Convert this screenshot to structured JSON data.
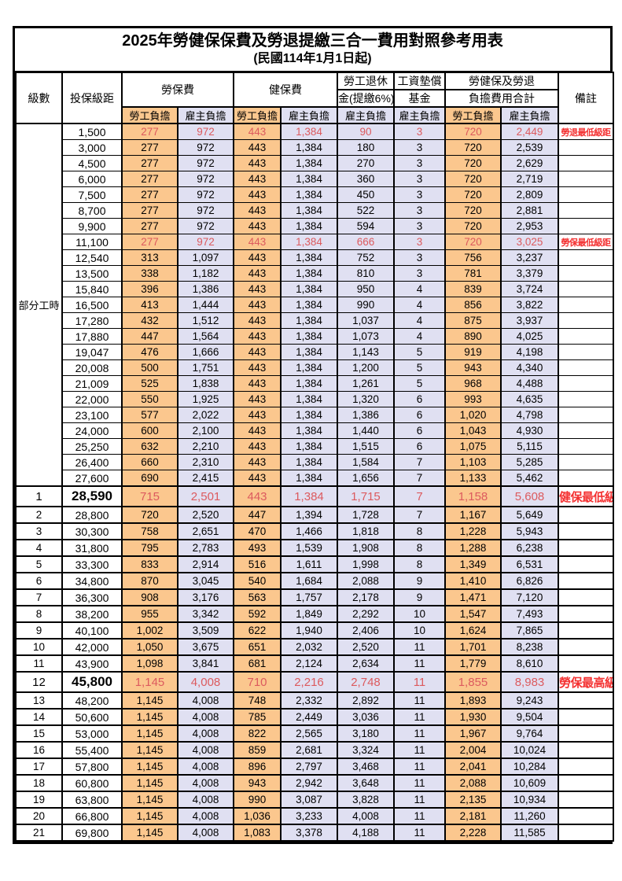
{
  "title": "2025年勞健保保費及勞退提繳三合一費用對照參考用表",
  "subtitle": "(民國114年1月1日起)",
  "headers": {
    "level": "級數",
    "salary": "投保級距",
    "labor": "勞保費",
    "health": "健保費",
    "pension_l1": "勞工退休",
    "pension_l2": "金(提繳6%)",
    "fund_l1": "工資墊償",
    "fund_l2": "基金",
    "total_l1": "勞健保及勞退",
    "total_l2": "負擔費用合計",
    "note": "備註",
    "employee_share": "勞工負擔",
    "employer_share": "雇主負擔"
  },
  "part_time_label": "部分工時",
  "colors": {
    "employee_bg": "#FBC78E",
    "employer_bg": "#E0E0F2",
    "highlight_value_text": "#DC5A5E",
    "note_text": "#F43131",
    "border": "#000000"
  },
  "value_column_keys": [
    "labor_employee",
    "labor_employer",
    "health_employee",
    "health_employer",
    "pension_employer",
    "fund_employer",
    "total_employee",
    "total_employer"
  ],
  "rows": [
    {
      "level": "",
      "salary": "1,500",
      "v": [
        "277",
        "972",
        "443",
        "1,384",
        "90",
        "3",
        "720",
        "2,449"
      ],
      "note": "勞退最低級距",
      "red": true
    },
    {
      "level": "",
      "salary": "3,000",
      "v": [
        "277",
        "972",
        "443",
        "1,384",
        "180",
        "3",
        "720",
        "2,539"
      ],
      "note": ""
    },
    {
      "level": "",
      "salary": "4,500",
      "v": [
        "277",
        "972",
        "443",
        "1,384",
        "270",
        "3",
        "720",
        "2,629"
      ],
      "note": ""
    },
    {
      "level": "",
      "salary": "6,000",
      "v": [
        "277",
        "972",
        "443",
        "1,384",
        "360",
        "3",
        "720",
        "2,719"
      ],
      "note": ""
    },
    {
      "level": "",
      "salary": "7,500",
      "v": [
        "277",
        "972",
        "443",
        "1,384",
        "450",
        "3",
        "720",
        "2,809"
      ],
      "note": ""
    },
    {
      "level": "",
      "salary": "8,700",
      "v": [
        "277",
        "972",
        "443",
        "1,384",
        "522",
        "3",
        "720",
        "2,881"
      ],
      "note": ""
    },
    {
      "level": "",
      "salary": "9,900",
      "v": [
        "277",
        "972",
        "443",
        "1,384",
        "594",
        "3",
        "720",
        "2,953"
      ],
      "note": ""
    },
    {
      "level": "",
      "salary": "11,100",
      "v": [
        "277",
        "972",
        "443",
        "1,384",
        "666",
        "3",
        "720",
        "3,025"
      ],
      "note": "勞保最低級距",
      "red": true
    },
    {
      "level": "",
      "salary": "12,540",
      "v": [
        "313",
        "1,097",
        "443",
        "1,384",
        "752",
        "3",
        "756",
        "3,237"
      ],
      "note": ""
    },
    {
      "level": "",
      "salary": "13,500",
      "v": [
        "338",
        "1,182",
        "443",
        "1,384",
        "810",
        "3",
        "781",
        "3,379"
      ],
      "note": ""
    },
    {
      "level": "",
      "salary": "15,840",
      "v": [
        "396",
        "1,386",
        "443",
        "1,384",
        "950",
        "4",
        "839",
        "3,724"
      ],
      "note": ""
    },
    {
      "level": "",
      "salary": "16,500",
      "v": [
        "413",
        "1,444",
        "443",
        "1,384",
        "990",
        "4",
        "856",
        "3,822"
      ],
      "note": ""
    },
    {
      "level": "",
      "salary": "17,280",
      "v": [
        "432",
        "1,512",
        "443",
        "1,384",
        "1,037",
        "4",
        "875",
        "3,937"
      ],
      "note": ""
    },
    {
      "level": "",
      "salary": "17,880",
      "v": [
        "447",
        "1,564",
        "443",
        "1,384",
        "1,073",
        "4",
        "890",
        "4,025"
      ],
      "note": ""
    },
    {
      "level": "",
      "salary": "19,047",
      "v": [
        "476",
        "1,666",
        "443",
        "1,384",
        "1,143",
        "5",
        "919",
        "4,198"
      ],
      "note": ""
    },
    {
      "level": "",
      "salary": "20,008",
      "v": [
        "500",
        "1,751",
        "443",
        "1,384",
        "1,200",
        "5",
        "943",
        "4,340"
      ],
      "note": ""
    },
    {
      "level": "",
      "salary": "21,009",
      "v": [
        "525",
        "1,838",
        "443",
        "1,384",
        "1,261",
        "5",
        "968",
        "4,488"
      ],
      "note": ""
    },
    {
      "level": "",
      "salary": "22,000",
      "v": [
        "550",
        "1,925",
        "443",
        "1,384",
        "1,320",
        "6",
        "993",
        "4,635"
      ],
      "note": ""
    },
    {
      "level": "",
      "salary": "23,100",
      "v": [
        "577",
        "2,022",
        "443",
        "1,384",
        "1,386",
        "6",
        "1,020",
        "4,798"
      ],
      "note": ""
    },
    {
      "level": "",
      "salary": "24,000",
      "v": [
        "600",
        "2,100",
        "443",
        "1,384",
        "1,440",
        "6",
        "1,043",
        "4,930"
      ],
      "note": ""
    },
    {
      "level": "",
      "salary": "25,250",
      "v": [
        "632",
        "2,210",
        "443",
        "1,384",
        "1,515",
        "6",
        "1,075",
        "5,115"
      ],
      "note": ""
    },
    {
      "level": "",
      "salary": "26,400",
      "v": [
        "660",
        "2,310",
        "443",
        "1,384",
        "1,584",
        "7",
        "1,103",
        "5,285"
      ],
      "note": ""
    },
    {
      "level": "",
      "salary": "27,600",
      "v": [
        "690",
        "2,415",
        "443",
        "1,384",
        "1,656",
        "7",
        "1,133",
        "5,462"
      ],
      "note": ""
    },
    {
      "level": "1",
      "salary": "28,590",
      "v": [
        "715",
        "2,501",
        "443",
        "1,384",
        "1,715",
        "7",
        "1,158",
        "5,608"
      ],
      "note": "健保最低級距",
      "red": true,
      "big": true
    },
    {
      "level": "2",
      "salary": "28,800",
      "v": [
        "720",
        "2,520",
        "447",
        "1,394",
        "1,728",
        "7",
        "1,167",
        "5,649"
      ],
      "note": ""
    },
    {
      "level": "3",
      "salary": "30,300",
      "v": [
        "758",
        "2,651",
        "470",
        "1,466",
        "1,818",
        "8",
        "1,228",
        "5,943"
      ],
      "note": ""
    },
    {
      "level": "4",
      "salary": "31,800",
      "v": [
        "795",
        "2,783",
        "493",
        "1,539",
        "1,908",
        "8",
        "1,288",
        "6,238"
      ],
      "note": ""
    },
    {
      "level": "5",
      "salary": "33,300",
      "v": [
        "833",
        "2,914",
        "516",
        "1,611",
        "1,998",
        "8",
        "1,349",
        "6,531"
      ],
      "note": ""
    },
    {
      "level": "6",
      "salary": "34,800",
      "v": [
        "870",
        "3,045",
        "540",
        "1,684",
        "2,088",
        "9",
        "1,410",
        "6,826"
      ],
      "note": ""
    },
    {
      "level": "7",
      "salary": "36,300",
      "v": [
        "908",
        "3,176",
        "563",
        "1,757",
        "2,178",
        "9",
        "1,471",
        "7,120"
      ],
      "note": ""
    },
    {
      "level": "8",
      "salary": "38,200",
      "v": [
        "955",
        "3,342",
        "592",
        "1,849",
        "2,292",
        "10",
        "1,547",
        "7,493"
      ],
      "note": ""
    },
    {
      "level": "9",
      "salary": "40,100",
      "v": [
        "1,002",
        "3,509",
        "622",
        "1,940",
        "2,406",
        "10",
        "1,624",
        "7,865"
      ],
      "note": ""
    },
    {
      "level": "10",
      "salary": "42,000",
      "v": [
        "1,050",
        "3,675",
        "651",
        "2,032",
        "2,520",
        "11",
        "1,701",
        "8,238"
      ],
      "note": ""
    },
    {
      "level": "11",
      "salary": "43,900",
      "v": [
        "1,098",
        "3,841",
        "681",
        "2,124",
        "2,634",
        "11",
        "1,779",
        "8,610"
      ],
      "note": ""
    },
    {
      "level": "12",
      "salary": "45,800",
      "v": [
        "1,145",
        "4,008",
        "710",
        "2,216",
        "2,748",
        "11",
        "1,855",
        "8,983"
      ],
      "note": "勞保最高級距",
      "red": true,
      "big": true
    },
    {
      "level": "13",
      "salary": "48,200",
      "v": [
        "1,145",
        "4,008",
        "748",
        "2,332",
        "2,892",
        "11",
        "1,893",
        "9,243"
      ],
      "note": ""
    },
    {
      "level": "14",
      "salary": "50,600",
      "v": [
        "1,145",
        "4,008",
        "785",
        "2,449",
        "3,036",
        "11",
        "1,930",
        "9,504"
      ],
      "note": ""
    },
    {
      "level": "15",
      "salary": "53,000",
      "v": [
        "1,145",
        "4,008",
        "822",
        "2,565",
        "3,180",
        "11",
        "1,967",
        "9,764"
      ],
      "note": ""
    },
    {
      "level": "16",
      "salary": "55,400",
      "v": [
        "1,145",
        "4,008",
        "859",
        "2,681",
        "3,324",
        "11",
        "2,004",
        "10,024"
      ],
      "note": ""
    },
    {
      "level": "17",
      "salary": "57,800",
      "v": [
        "1,145",
        "4,008",
        "896",
        "2,797",
        "3,468",
        "11",
        "2,041",
        "10,284"
      ],
      "note": ""
    },
    {
      "level": "18",
      "salary": "60,800",
      "v": [
        "1,145",
        "4,008",
        "943",
        "2,942",
        "3,648",
        "11",
        "2,088",
        "10,609"
      ],
      "note": ""
    },
    {
      "level": "19",
      "salary": "63,800",
      "v": [
        "1,145",
        "4,008",
        "990",
        "3,087",
        "3,828",
        "11",
        "2,135",
        "10,934"
      ],
      "note": ""
    },
    {
      "level": "20",
      "salary": "66,800",
      "v": [
        "1,145",
        "4,008",
        "1,036",
        "3,233",
        "4,008",
        "11",
        "2,181",
        "11,260"
      ],
      "note": ""
    },
    {
      "level": "21",
      "salary": "69,800",
      "v": [
        "1,145",
        "4,008",
        "1,083",
        "3,378",
        "4,188",
        "11",
        "2,228",
        "11,585"
      ],
      "note": ""
    }
  ]
}
